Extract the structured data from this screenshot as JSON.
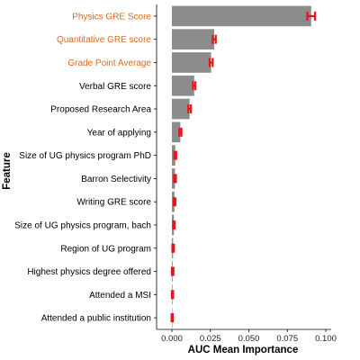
{
  "chart_data": {
    "type": "bar",
    "orientation": "horizontal",
    "xlabel": "AUC Mean Importance",
    "ylabel": "Feature",
    "xlim": [
      -0.006,
      0.1
    ],
    "xticks": [
      0.0,
      0.025,
      0.05,
      0.075,
      0.1
    ],
    "xtick_labels": [
      "0.000",
      "0.025",
      "0.050",
      "0.075",
      "0.100"
    ],
    "grid": false,
    "bar_color": "#8c8c8c",
    "error_bar_color": "#e8131b",
    "highlight_label_color": "#e06a1f",
    "default_label_color": "#000000",
    "categories": [
      "Physics GRE Score",
      "Quantitative GRE score",
      "Grade Point Average",
      "Verbal GRE score",
      "Proposed Research Area",
      "Year of applying",
      "Size of UG physics program PhD",
      "Barron Selectivity",
      "Writing GRE score",
      "Size of UG physics program, bach",
      "Region of UG program",
      "Highest physics degree offered",
      "Attended a MSI",
      "Attended a public institution"
    ],
    "values": [
      0.0905,
      0.0275,
      0.0255,
      0.0145,
      0.0115,
      0.0055,
      0.0022,
      0.002,
      0.0017,
      0.0013,
      0.0008,
      0.0005,
      0.0004,
      0.0002
    ],
    "errors": [
      0.0025,
      0.001,
      0.001,
      0.0008,
      0.0008,
      0.0007,
      0.0006,
      0.0006,
      0.0006,
      0.0005,
      0.0005,
      0.0005,
      0.0004,
      0.0004
    ],
    "highlighted": [
      true,
      true,
      true,
      false,
      false,
      false,
      false,
      false,
      false,
      false,
      false,
      false,
      false,
      false
    ]
  }
}
